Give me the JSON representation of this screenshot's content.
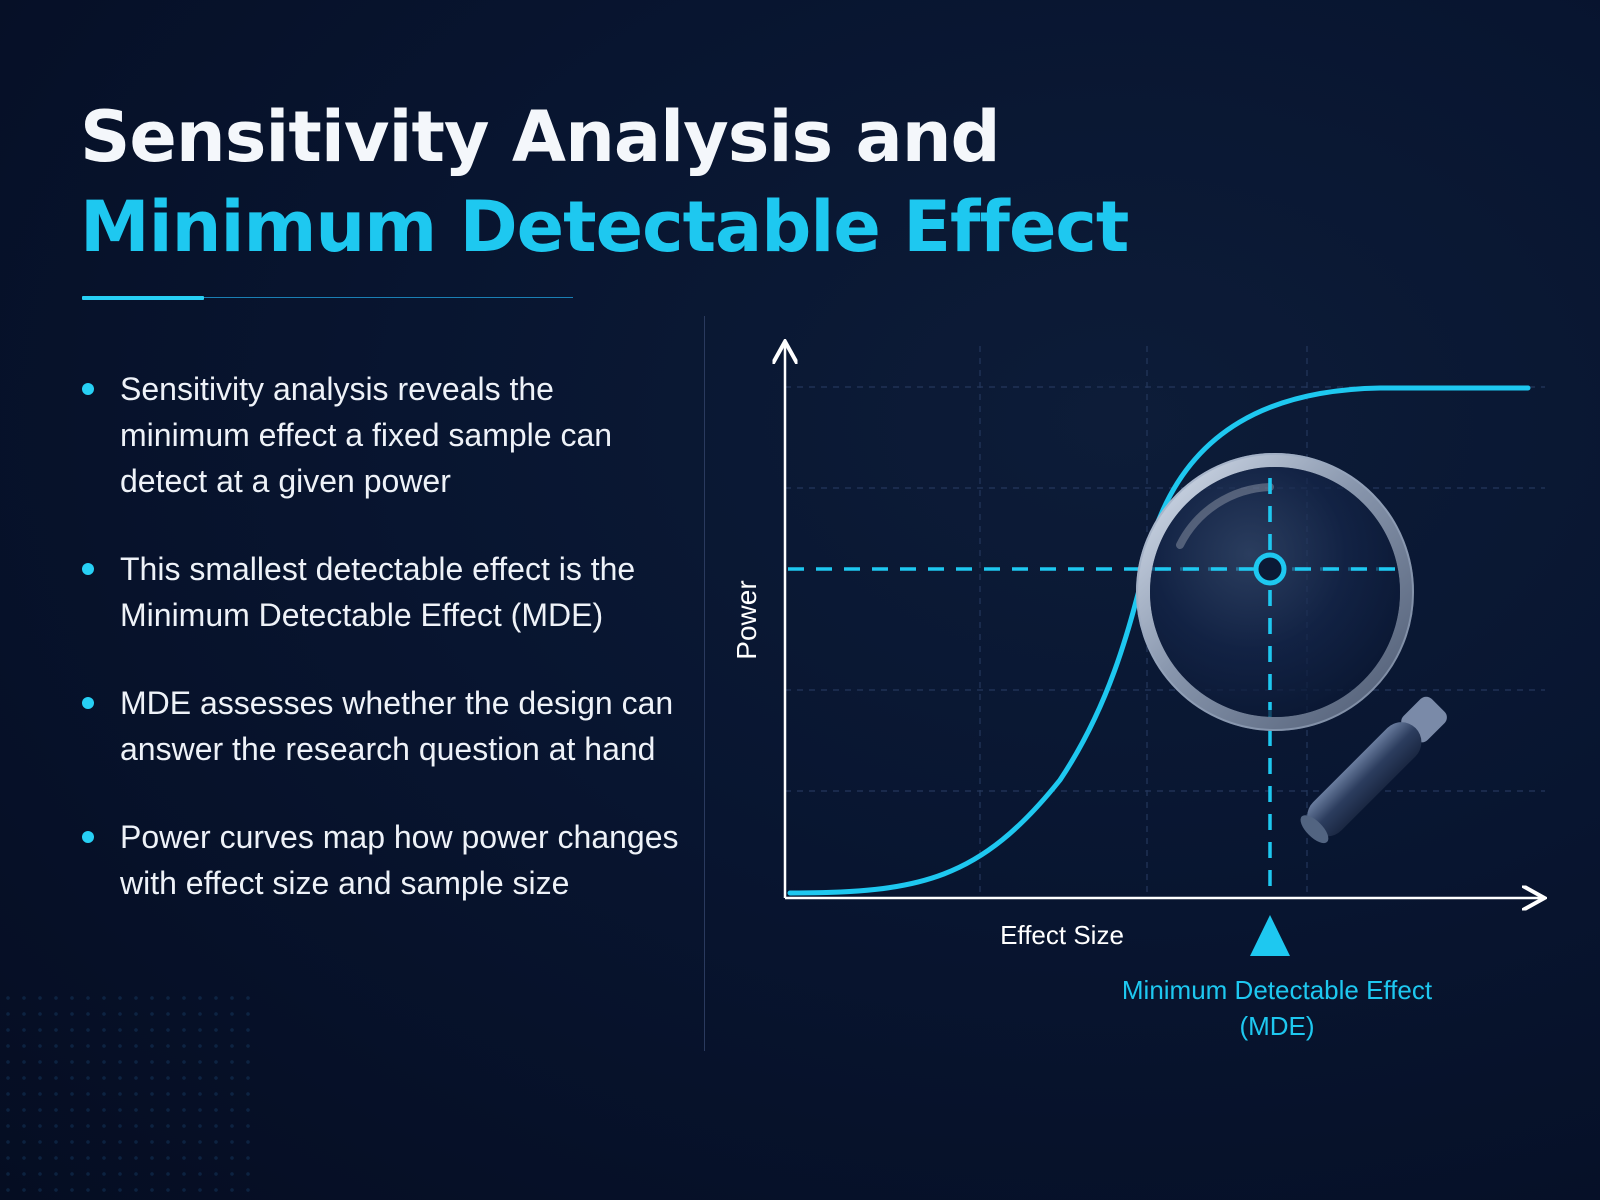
{
  "title": {
    "line1": "Sensitivity Analysis and",
    "line2": "Minimum Detectable Effect"
  },
  "bullets": [
    "Sensitivity analysis reveals the minimum effect a fixed sample can detect at a given power",
    "This smallest detectable effect is the Minimum Detectable Effect (MDE)",
    "MDE assesses whether the design can answer the research question at hand",
    "Power curves map how power changes with effect size and sample size"
  ],
  "diagram": {
    "y_axis_label": "Power",
    "x_axis_label": "Effect Size",
    "mde_label_line1": "Minimum Detectable Effect",
    "mde_label_line2": "(MDE)",
    "curve": "sigmoid power curve",
    "icon": "magnifying-glass-icon",
    "colors": {
      "background": "#081530",
      "accent": "#1ec8f0",
      "text": "#f4f7fb",
      "grid": "#24375c"
    }
  }
}
